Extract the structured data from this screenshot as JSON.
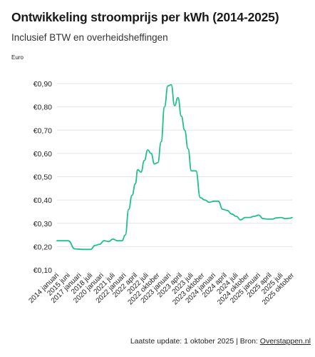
{
  "header": {
    "title": "Ontwikkeling stroomprijs per kWh (2014-2025)",
    "subtitle": "Inclusief BTW en overheidsheffingen"
  },
  "footer": {
    "prefix": "Laatste update:  1 oktober 2025 | Bron: ",
    "source_link": "Overstappen.nl"
  },
  "colors": {
    "line": "#1fbf8f",
    "grid": "#e4e4e4"
  },
  "chart_data": {
    "type": "line",
    "title": "Ontwikkeling stroomprijs per kWh (2014-2025)",
    "subtitle": "Inclusief BTW en overheidsheffingen",
    "ylabel": "Euro",
    "ylim": [
      0.1,
      0.9
    ],
    "yticks": [
      0.1,
      0.2,
      0.3,
      0.4,
      0.5,
      0.6,
      0.7,
      0.8,
      0.9
    ],
    "ytick_labels": [
      "€0,10",
      "€0,20",
      "€0,30",
      "€0,40",
      "€0,50",
      "€0,60",
      "€0,70",
      "€0,80",
      "€0,90"
    ],
    "grid": true,
    "xtick_labels": [
      "2014 januari",
      "2015 juni",
      "2017 januari",
      "2018 juli",
      "2020 januari",
      "2021 juli",
      "2022 januari",
      "2022 april",
      "2022 juli",
      "2022 oktober",
      "2023 januari",
      "2023 april",
      "2023 juli",
      "2023 oktober",
      "2024 januari",
      "2024 april",
      "2024 juli",
      "2024 oktober",
      "2025 januari",
      "2025 april",
      "2025 juli",
      "2025 oktober"
    ],
    "series": [
      {
        "values": [
          [
            0.0,
            0.225
          ],
          [
            1.0,
            0.225
          ],
          [
            1.6,
            0.19
          ],
          [
            2.3,
            0.188
          ],
          [
            3.0,
            0.188
          ],
          [
            3.4,
            0.205
          ],
          [
            3.8,
            0.21
          ],
          [
            4.2,
            0.225
          ],
          [
            4.6,
            0.222
          ],
          [
            5.0,
            0.232
          ],
          [
            5.4,
            0.225
          ],
          [
            5.8,
            0.225
          ],
          [
            6.1,
            0.25
          ],
          [
            6.4,
            0.36
          ],
          [
            6.7,
            0.42
          ],
          [
            7.0,
            0.47
          ],
          [
            7.2,
            0.53
          ],
          [
            7.5,
            0.52
          ],
          [
            7.8,
            0.57
          ],
          [
            8.1,
            0.615
          ],
          [
            8.4,
            0.6
          ],
          [
            8.7,
            0.555
          ],
          [
            9.0,
            0.56
          ],
          [
            9.3,
            0.65
          ],
          [
            9.6,
            0.8
          ],
          [
            9.9,
            0.89
          ],
          [
            10.2,
            0.895
          ],
          [
            10.5,
            0.805
          ],
          [
            10.8,
            0.84
          ],
          [
            11.1,
            0.76
          ],
          [
            11.4,
            0.7
          ],
          [
            11.7,
            0.62
          ],
          [
            12.0,
            0.525
          ],
          [
            12.4,
            0.525
          ],
          [
            12.8,
            0.41
          ],
          [
            13.2,
            0.4
          ],
          [
            13.6,
            0.39
          ],
          [
            14.0,
            0.395
          ],
          [
            14.4,
            0.395
          ],
          [
            14.8,
            0.36
          ],
          [
            15.2,
            0.355
          ],
          [
            15.6,
            0.34
          ],
          [
            16.0,
            0.33
          ],
          [
            16.4,
            0.315
          ],
          [
            16.8,
            0.325
          ],
          [
            17.2,
            0.325
          ],
          [
            17.6,
            0.33
          ],
          [
            18.0,
            0.335
          ],
          [
            18.4,
            0.32
          ],
          [
            18.8,
            0.318
          ],
          [
            19.2,
            0.318
          ],
          [
            19.6,
            0.323
          ],
          [
            20.0,
            0.325
          ],
          [
            20.4,
            0.32
          ],
          [
            20.8,
            0.322
          ],
          [
            21.0,
            0.325
          ]
        ]
      }
    ]
  }
}
